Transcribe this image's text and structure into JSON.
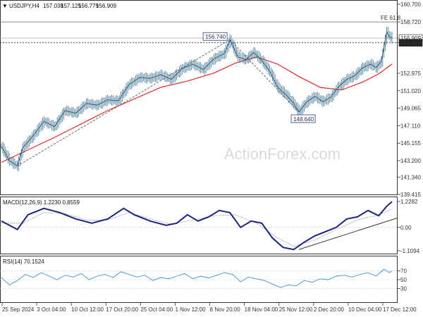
{
  "watermark": "ActionForex.com",
  "chart_data": [
    {
      "type": "candlestick",
      "title": "USDJPY,H4",
      "ohlc_header": {
        "open": "157.038",
        "high": "157.125",
        "low": "156.779",
        "close": "156.909"
      },
      "y_ticks": [
        "160.700",
        "158.720",
        "156.909",
        "156.390",
        "152.975",
        "151.020",
        "149.065",
        "147.110",
        "145.155",
        "143.200",
        "141.340",
        "139.415"
      ],
      "ylim": [
        139.415,
        160.7
      ],
      "x_tick_labels": [
        "25 Sep 2024",
        "3 Oct 04:00",
        "10 Oct 12:00",
        "17 Oct 20:00",
        "25 Oct 04:00",
        "1 Nov 12:00",
        "8 Nov 20:00",
        "18 Nov 04:00",
        "25 Nov 12:00",
        "2 Dec 20:00",
        "10 Dec 04:00",
        "17 Dec 12:00"
      ],
      "annotations": {
        "fib_label": "FE 61.8",
        "fib_level": 158.72,
        "last_price_label": "156.909",
        "last_price": 156.909,
        "dotted_level_label": "156.390",
        "dotted_level": 156.39,
        "high_label": "156.740",
        "low_label": "148.640"
      },
      "price_series": [
        {
          "t": 0,
          "y": 144.8
        },
        {
          "t": 3,
          "y": 143.2
        },
        {
          "t": 6,
          "y": 142.6
        },
        {
          "t": 8,
          "y": 144.6
        },
        {
          "t": 12,
          "y": 146.0
        },
        {
          "t": 16,
          "y": 147.6
        },
        {
          "t": 20,
          "y": 147.0
        },
        {
          "t": 24,
          "y": 148.8
        },
        {
          "t": 28,
          "y": 148.5
        },
        {
          "t": 32,
          "y": 149.6
        },
        {
          "t": 36,
          "y": 149.4
        },
        {
          "t": 40,
          "y": 150.0
        },
        {
          "t": 44,
          "y": 149.9
        },
        {
          "t": 48,
          "y": 151.7
        },
        {
          "t": 52,
          "y": 152.5
        },
        {
          "t": 56,
          "y": 152.4
        },
        {
          "t": 60,
          "y": 152.8
        },
        {
          "t": 64,
          "y": 152.3
        },
        {
          "t": 68,
          "y": 153.5
        },
        {
          "t": 72,
          "y": 154.0
        },
        {
          "t": 76,
          "y": 153.4
        },
        {
          "t": 80,
          "y": 154.6
        },
        {
          "t": 84,
          "y": 155.2
        },
        {
          "t": 86,
          "y": 156.74
        },
        {
          "t": 89,
          "y": 154.8
        },
        {
          "t": 92,
          "y": 154.5
        },
        {
          "t": 95,
          "y": 155.3
        },
        {
          "t": 98,
          "y": 154.4
        },
        {
          "t": 101,
          "y": 153.2
        },
        {
          "t": 104,
          "y": 151.4
        },
        {
          "t": 107,
          "y": 150.6
        },
        {
          "t": 110,
          "y": 149.6
        },
        {
          "t": 112,
          "y": 148.64
        },
        {
          "t": 115,
          "y": 149.8
        },
        {
          "t": 118,
          "y": 150.4
        },
        {
          "t": 121,
          "y": 149.8
        },
        {
          "t": 124,
          "y": 150.3
        },
        {
          "t": 127,
          "y": 151.5
        },
        {
          "t": 130,
          "y": 152.3
        },
        {
          "t": 133,
          "y": 152.7
        },
        {
          "t": 136,
          "y": 153.6
        },
        {
          "t": 139,
          "y": 154.0
        },
        {
          "t": 141,
          "y": 153.6
        },
        {
          "t": 143,
          "y": 154.3
        },
        {
          "t": 145,
          "y": 157.6
        },
        {
          "t": 146,
          "y": 157.1
        },
        {
          "t": 147,
          "y": 156.91
        }
      ],
      "moving_average": [
        {
          "t": 0,
          "y": 143.0
        },
        {
          "t": 20,
          "y": 145.8
        },
        {
          "t": 40,
          "y": 148.8
        },
        {
          "t": 60,
          "y": 151.4
        },
        {
          "t": 70,
          "y": 152.1
        },
        {
          "t": 80,
          "y": 153.0
        },
        {
          "t": 88,
          "y": 154.1
        },
        {
          "t": 96,
          "y": 154.8
        },
        {
          "t": 104,
          "y": 154.0
        },
        {
          "t": 112,
          "y": 152.6
        },
        {
          "t": 120,
          "y": 151.4
        },
        {
          "t": 128,
          "y": 151.1
        },
        {
          "t": 136,
          "y": 152.0
        },
        {
          "t": 142,
          "y": 152.9
        },
        {
          "t": 147,
          "y": 154.0
        }
      ],
      "trend_lines": [
        [
          {
            "t": 6,
            "y": 142.6
          },
          {
            "t": 86,
            "y": 156.74
          }
        ],
        [
          {
            "t": 86,
            "y": 156.74
          },
          {
            "t": 112,
            "y": 148.64
          }
        ]
      ]
    },
    {
      "type": "line",
      "title": "MACD(12,26,9) 1.2230 0.8559",
      "y_ticks": [
        "1.2282",
        "0.00",
        "-1.1094"
      ],
      "ylim": [
        -1.1094,
        1.2282
      ],
      "series": [
        {
          "values": [
            {
              "t": 0,
              "y": 0.3
            },
            {
              "t": 6,
              "y": -0.1
            },
            {
              "t": 10,
              "y": 0.6
            },
            {
              "t": 16,
              "y": 0.9
            },
            {
              "t": 22,
              "y": 0.7
            },
            {
              "t": 28,
              "y": 0.4
            },
            {
              "t": 34,
              "y": 0.2
            },
            {
              "t": 40,
              "y": 0.4
            },
            {
              "t": 46,
              "y": 0.9
            },
            {
              "t": 50,
              "y": 0.6
            },
            {
              "t": 56,
              "y": 0.3
            },
            {
              "t": 62,
              "y": 0.1
            },
            {
              "t": 66,
              "y": 0.2
            },
            {
              "t": 70,
              "y": 0.6
            },
            {
              "t": 74,
              "y": 0.3
            },
            {
              "t": 78,
              "y": 0.5
            },
            {
              "t": 82,
              "y": 0.8
            },
            {
              "t": 86,
              "y": 0.7
            },
            {
              "t": 90,
              "y": 0.0
            },
            {
              "t": 94,
              "y": 0.3
            },
            {
              "t": 98,
              "y": 0.2
            },
            {
              "t": 102,
              "y": -0.5
            },
            {
              "t": 106,
              "y": -0.95
            },
            {
              "t": 110,
              "y": -1.05
            },
            {
              "t": 114,
              "y": -0.7
            },
            {
              "t": 118,
              "y": -0.4
            },
            {
              "t": 122,
              "y": -0.2
            },
            {
              "t": 126,
              "y": 0.0
            },
            {
              "t": 130,
              "y": 0.4
            },
            {
              "t": 134,
              "y": 0.5
            },
            {
              "t": 138,
              "y": 0.8
            },
            {
              "t": 142,
              "y": 0.55
            },
            {
              "t": 145,
              "y": 1.0
            },
            {
              "t": 147,
              "y": 1.22
            }
          ]
        },
        {
          "values": [
            {
              "t": 0,
              "y": 0.2
            },
            {
              "t": 8,
              "y": 0.2
            },
            {
              "t": 16,
              "y": 0.7
            },
            {
              "t": 24,
              "y": 0.65
            },
            {
              "t": 32,
              "y": 0.35
            },
            {
              "t": 40,
              "y": 0.35
            },
            {
              "t": 48,
              "y": 0.7
            },
            {
              "t": 56,
              "y": 0.4
            },
            {
              "t": 64,
              "y": 0.15
            },
            {
              "t": 72,
              "y": 0.35
            },
            {
              "t": 80,
              "y": 0.55
            },
            {
              "t": 88,
              "y": 0.6
            },
            {
              "t": 96,
              "y": 0.2
            },
            {
              "t": 104,
              "y": -0.5
            },
            {
              "t": 110,
              "y": -0.9
            },
            {
              "t": 118,
              "y": -0.6
            },
            {
              "t": 126,
              "y": -0.1
            },
            {
              "t": 134,
              "y": 0.35
            },
            {
              "t": 142,
              "y": 0.6
            },
            {
              "t": 147,
              "y": 0.86
            }
          ]
        }
      ],
      "trend_line": [
        {
          "t": 112,
          "y": -1.05
        },
        {
          "t": 147,
          "y": 0.45
        }
      ]
    },
    {
      "type": "line",
      "title": "RSI(14) 70.1524",
      "y_ticks": [
        "70",
        "50",
        "30"
      ],
      "ylim": [
        0,
        100
      ],
      "series": [
        {
          "values": [
            {
              "t": 0,
              "y": 55
            },
            {
              "t": 3,
              "y": 38
            },
            {
              "t": 6,
              "y": 48
            },
            {
              "t": 9,
              "y": 62
            },
            {
              "t": 12,
              "y": 55
            },
            {
              "t": 15,
              "y": 66
            },
            {
              "t": 18,
              "y": 58
            },
            {
              "t": 21,
              "y": 50
            },
            {
              "t": 24,
              "y": 60
            },
            {
              "t": 27,
              "y": 56
            },
            {
              "t": 30,
              "y": 64
            },
            {
              "t": 33,
              "y": 50
            },
            {
              "t": 36,
              "y": 58
            },
            {
              "t": 39,
              "y": 62
            },
            {
              "t": 42,
              "y": 55
            },
            {
              "t": 45,
              "y": 68
            },
            {
              "t": 48,
              "y": 62
            },
            {
              "t": 51,
              "y": 56
            },
            {
              "t": 54,
              "y": 60
            },
            {
              "t": 57,
              "y": 48
            },
            {
              "t": 60,
              "y": 55
            },
            {
              "t": 63,
              "y": 52
            },
            {
              "t": 66,
              "y": 58
            },
            {
              "t": 69,
              "y": 64
            },
            {
              "t": 72,
              "y": 52
            },
            {
              "t": 75,
              "y": 58
            },
            {
              "t": 78,
              "y": 54
            },
            {
              "t": 81,
              "y": 60
            },
            {
              "t": 84,
              "y": 66
            },
            {
              "t": 87,
              "y": 62
            },
            {
              "t": 90,
              "y": 45
            },
            {
              "t": 93,
              "y": 56
            },
            {
              "t": 96,
              "y": 52
            },
            {
              "t": 99,
              "y": 48
            },
            {
              "t": 102,
              "y": 40
            },
            {
              "t": 105,
              "y": 32
            },
            {
              "t": 108,
              "y": 38
            },
            {
              "t": 111,
              "y": 36
            },
            {
              "t": 114,
              "y": 48
            },
            {
              "t": 117,
              "y": 44
            },
            {
              "t": 120,
              "y": 52
            },
            {
              "t": 123,
              "y": 50
            },
            {
              "t": 126,
              "y": 58
            },
            {
              "t": 129,
              "y": 60
            },
            {
              "t": 132,
              "y": 56
            },
            {
              "t": 135,
              "y": 62
            },
            {
              "t": 138,
              "y": 66
            },
            {
              "t": 141,
              "y": 58
            },
            {
              "t": 144,
              "y": 74
            },
            {
              "t": 146,
              "y": 66
            },
            {
              "t": 147,
              "y": 70
            }
          ]
        }
      ]
    }
  ]
}
